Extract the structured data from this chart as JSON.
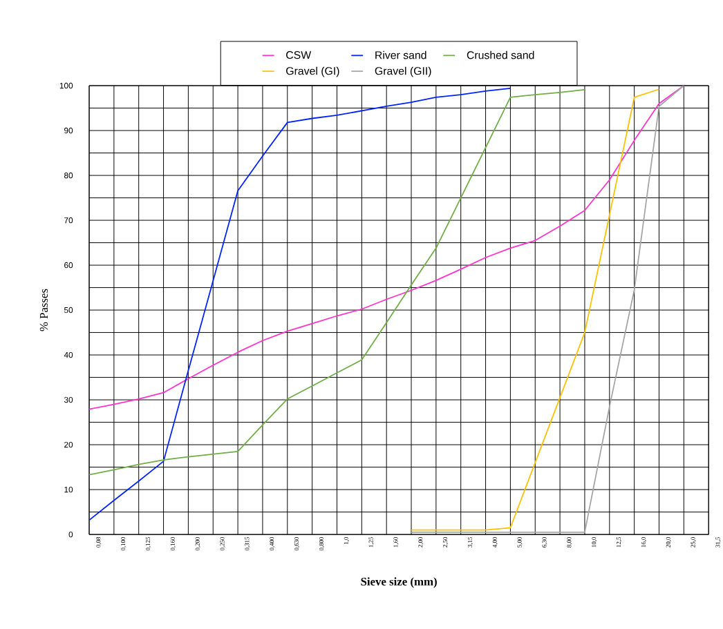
{
  "chart_data": {
    "type": "line",
    "xlabel": "Sieve size (mm)",
    "ylabel": "% Passes",
    "categories": [
      "0,08",
      "0,100",
      "0,125",
      "0,160",
      "0,200",
      "0,250",
      "0,315",
      "0,400",
      "0,630",
      "0,800",
      "1,0",
      "1,25",
      "1,60",
      "2,00",
      "2,50",
      "3,15",
      "4,00",
      "5,00",
      "6,30",
      "8,00",
      "10,0",
      "12,5",
      "16,0",
      "20,0",
      "25,0",
      "31,5"
    ],
    "series": [
      {
        "name": "CSW",
        "color": "#ff33cc",
        "values": [
          27.9,
          29,
          30.2,
          31.6,
          34.7,
          37.7,
          40.6,
          43.2,
          45.3,
          47,
          48.7,
          50.2,
          52.4,
          54.4,
          56.6,
          59.1,
          61.7,
          63.8,
          65.5,
          68.7,
          72.2,
          79,
          87.8,
          96,
          100,
          null
        ]
      },
      {
        "name": "River sand",
        "color": "#0022ff",
        "values": [
          3.2,
          7.6,
          11.9,
          16.3,
          36.5,
          56.5,
          76.6,
          84.3,
          91.8,
          92.7,
          93.4,
          94.4,
          95.4,
          96.3,
          97.4,
          98,
          98.8,
          99.4,
          null,
          null,
          null,
          null,
          null,
          null,
          null,
          null
        ]
      },
      {
        "name": "Crushed sand",
        "color": "#70ad47",
        "values": [
          13.3,
          14.4,
          15.6,
          16.6,
          17.3,
          17.9,
          18.5,
          24.4,
          30.2,
          33.1,
          36,
          38.9,
          47.2,
          55.6,
          63.8,
          75,
          86.2,
          97.4,
          98,
          98.5,
          99.1,
          null,
          null,
          null,
          null,
          null
        ]
      },
      {
        "name": "Gravel (GI)",
        "color": "#ffc000",
        "values": [
          null,
          null,
          null,
          null,
          null,
          null,
          null,
          null,
          null,
          null,
          null,
          null,
          null,
          1,
          1,
          1,
          1,
          1.5,
          16,
          30.5,
          45,
          71.2,
          97.4,
          99.2,
          null,
          null
        ]
      },
      {
        "name": "Gravel (GII)",
        "color": "#a5a5a5",
        "values": [
          null,
          null,
          null,
          null,
          null,
          null,
          null,
          null,
          null,
          null,
          null,
          null,
          null,
          0.5,
          0.5,
          0.5,
          0.5,
          0.5,
          0.5,
          0.5,
          0.5,
          28.5,
          54.5,
          95.4,
          100,
          null
        ]
      }
    ],
    "ylim": [
      0,
      100
    ],
    "yticks": [
      0,
      10,
      20,
      30,
      40,
      50,
      60,
      70,
      80,
      90,
      100
    ],
    "grid": true,
    "legend": "top",
    "marker": "none",
    "line_style": "solid"
  }
}
